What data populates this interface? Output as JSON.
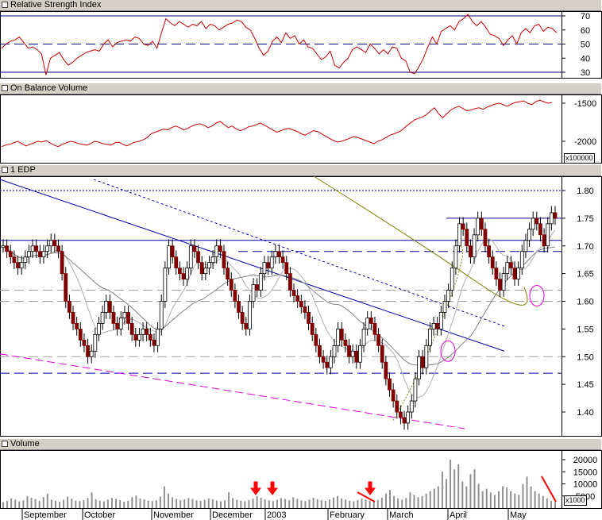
{
  "panels": {
    "rsi": {
      "title": "Relative Strength Index"
    },
    "obv": {
      "title": "On Balance Volume",
      "unit": "x100000"
    },
    "price": {
      "title": "1 EDP"
    },
    "volume": {
      "title": "Volume",
      "unit": "x1000"
    }
  },
  "colors": {
    "line_red": "#cc0000",
    "candle_up": "#ffffff",
    "candle_down": "#800000",
    "trend_blue": "#0000b0",
    "support_blue": "#0000a0",
    "magenta": "#e000e0",
    "olive": "#808000",
    "ma_gray": "#a0a0a0",
    "volume_bar": "#909090",
    "arrow": "#ff0000",
    "panel_header": "#d4d0c8"
  },
  "x_axis": {
    "labels": [
      "September",
      "October",
      "November",
      "December",
      "2003",
      "February",
      "March",
      "April",
      "May"
    ]
  },
  "chart_data": [
    {
      "type": "line",
      "title": "Relative Strength Index",
      "yticks": [
        30,
        40,
        50,
        60,
        70
      ],
      "ylim": [
        27,
        74
      ],
      "reference_lines": [
        30,
        50,
        70
      ],
      "series": [
        {
          "values": [
            47,
            50,
            52,
            53,
            55,
            51,
            47,
            48,
            46,
            43,
            28,
            40,
            42,
            44,
            39,
            35,
            37,
            40,
            42,
            44,
            45,
            46,
            45,
            50,
            53,
            48,
            51,
            52,
            53,
            52,
            55,
            54,
            50,
            49,
            52,
            47,
            58,
            68,
            65,
            63,
            66,
            64,
            62,
            64,
            63,
            66,
            61,
            64,
            63,
            60,
            62,
            64,
            65,
            67,
            66,
            62,
            60,
            54,
            47,
            42,
            45,
            52,
            55,
            51,
            58,
            54,
            56,
            50,
            53,
            48,
            47,
            43,
            39,
            41,
            45,
            35,
            33,
            37,
            40,
            46,
            48,
            46,
            44,
            50,
            47,
            43,
            46,
            43,
            48,
            47,
            40,
            38,
            30,
            29,
            34,
            40,
            48,
            55,
            50,
            59,
            61,
            63,
            60,
            66,
            68,
            71,
            66,
            63,
            66,
            62,
            57,
            56,
            54,
            49,
            53,
            56,
            50,
            58,
            61,
            58,
            63,
            64,
            59,
            62,
            61,
            58
          ]
        }
      ]
    },
    {
      "type": "line",
      "title": "On Balance Volume",
      "yticks": [
        -2000,
        -1500
      ],
      "ylim": [
        -2300,
        -1400
      ],
      "series": [
        {
          "values": [
            -2070,
            -2050,
            -2040,
            -2020,
            -2000,
            -2030,
            -2060,
            -2040,
            -2020,
            -2000,
            -2010,
            -1990,
            -2020,
            -2050,
            -2070,
            -2040,
            -2020,
            -2000,
            -2010,
            -2030,
            -2040,
            -2050,
            -2030,
            -2000,
            -2010,
            -2030,
            -2040,
            -2050,
            -2020,
            -2010,
            -2040,
            -2060,
            -2030,
            -2010,
            -2000,
            -1980,
            -1950,
            -1900,
            -1880,
            -1860,
            -1840,
            -1850,
            -1820,
            -1800,
            -1820,
            -1850,
            -1830,
            -1800,
            -1780,
            -1770,
            -1790,
            -1820,
            -1800,
            -1760,
            -1740,
            -1780,
            -1820,
            -1800,
            -1840,
            -1860,
            -1840,
            -1810,
            -1800,
            -1780,
            -1760,
            -1790,
            -1820,
            -1850,
            -1880,
            -1860,
            -1840,
            -1830,
            -1850,
            -1870,
            -1900,
            -1920,
            -1890,
            -1860,
            -1870,
            -1900,
            -1930,
            -1960,
            -1990,
            -2010,
            -2000,
            -1980,
            -1960,
            -1940,
            -1950,
            -1970,
            -1990,
            -2010,
            -2030,
            -2000,
            -1980,
            -1950,
            -1920,
            -1900,
            -1880,
            -1850,
            -1800,
            -1760,
            -1720,
            -1700,
            -1680,
            -1650,
            -1600,
            -1560,
            -1640,
            -1690,
            -1640,
            -1590,
            -1560,
            -1540,
            -1570,
            -1600,
            -1590,
            -1570,
            -1560,
            -1580,
            -1550,
            -1530,
            -1510,
            -1500,
            -1520,
            -1540,
            -1510,
            -1490,
            -1480,
            -1470,
            -1500,
            -1520,
            -1480,
            -1460,
            -1480,
            -1500,
            -1490
          ]
        }
      ]
    },
    {
      "type": "candlestick",
      "title": "1 EDP",
      "yticks": [
        1.4,
        1.45,
        1.5,
        1.55,
        1.6,
        1.65,
        1.7,
        1.75,
        1.8
      ],
      "ylim": [
        1.36,
        1.82
      ],
      "closes": [
        1.7,
        1.69,
        1.68,
        1.67,
        1.66,
        1.67,
        1.68,
        1.69,
        1.7,
        1.69,
        1.68,
        1.69,
        1.7,
        1.71,
        1.7,
        1.69,
        1.65,
        1.6,
        1.58,
        1.56,
        1.55,
        1.53,
        1.52,
        1.5,
        1.51,
        1.54,
        1.56,
        1.58,
        1.6,
        1.58,
        1.56,
        1.55,
        1.57,
        1.58,
        1.56,
        1.54,
        1.53,
        1.54,
        1.55,
        1.54,
        1.53,
        1.52,
        1.55,
        1.6,
        1.66,
        1.7,
        1.68,
        1.66,
        1.65,
        1.64,
        1.66,
        1.7,
        1.69,
        1.67,
        1.65,
        1.66,
        1.67,
        1.68,
        1.7,
        1.69,
        1.66,
        1.64,
        1.62,
        1.6,
        1.58,
        1.56,
        1.55,
        1.6,
        1.63,
        1.62,
        1.65,
        1.67,
        1.66,
        1.68,
        1.69,
        1.68,
        1.67,
        1.65,
        1.62,
        1.61,
        1.6,
        1.59,
        1.58,
        1.56,
        1.54,
        1.52,
        1.5,
        1.49,
        1.48,
        1.5,
        1.52,
        1.55,
        1.53,
        1.52,
        1.5,
        1.51,
        1.49,
        1.52,
        1.55,
        1.57,
        1.56,
        1.54,
        1.52,
        1.49,
        1.46,
        1.44,
        1.42,
        1.4,
        1.39,
        1.38,
        1.4,
        1.42,
        1.46,
        1.5,
        1.48,
        1.52,
        1.55,
        1.56,
        1.55,
        1.58,
        1.6,
        1.62,
        1.66,
        1.7,
        1.74,
        1.73,
        1.7,
        1.68,
        1.72,
        1.75,
        1.73,
        1.7,
        1.68,
        1.66,
        1.64,
        1.62,
        1.65,
        1.67,
        1.66,
        1.64,
        1.66,
        1.69,
        1.71,
        1.73,
        1.75,
        1.74,
        1.72,
        1.7,
        1.74,
        1.76,
        1.75
      ],
      "horizontal_lines": [
        {
          "y": 1.8,
          "style": "dotted"
        },
        {
          "y": 1.75,
          "style": "solid"
        },
        {
          "y": 1.71,
          "style": "solid"
        },
        {
          "y": 1.69,
          "style": "dashed"
        },
        {
          "y": 1.62,
          "style": "dashed-gray"
        },
        {
          "y": 1.6,
          "style": "dashed-gray"
        },
        {
          "y": 1.5,
          "style": "dashed-gray"
        },
        {
          "y": 1.47,
          "style": "dashed"
        }
      ]
    },
    {
      "type": "bar",
      "title": "Volume",
      "yticks": [
        5000,
        10000,
        15000,
        20000
      ],
      "ylim": [
        0,
        22000
      ],
      "values": [
        2500,
        3000,
        4000,
        3500,
        2800,
        3200,
        5000,
        4200,
        3800,
        3000,
        4500,
        6000,
        3500,
        3000,
        2600,
        3400,
        4800,
        3900,
        3100,
        2900,
        3300,
        4100,
        6500,
        3700,
        3000,
        2800,
        3500,
        4200,
        3800,
        3300,
        2700,
        3000,
        4500,
        5200,
        4000,
        3600,
        3100,
        2900,
        3200,
        4800,
        9000,
        6000,
        4500,
        3800,
        3300,
        3600,
        4100,
        3800,
        3200,
        3000,
        3400,
        4000,
        3700,
        3100,
        2800,
        3200,
        6500,
        4200,
        3500,
        3000,
        2800,
        3300,
        3900,
        5000,
        4300,
        3600,
        3200,
        2900,
        3400,
        4100,
        3800,
        3300,
        4500,
        3800,
        3200,
        2900,
        3500,
        4200,
        3700,
        3300,
        3000,
        3600,
        4400,
        5000,
        4000,
        3500,
        3100,
        2800,
        3300,
        3900,
        3500,
        3100,
        2800,
        3400,
        4300,
        6000,
        7500,
        5000,
        4000,
        3500,
        4200,
        6500,
        5500,
        4500,
        5000,
        6000,
        7000,
        8000,
        9000,
        15000,
        12000,
        20000,
        16000,
        18000,
        11000,
        9000,
        14000,
        16000,
        10000,
        7000,
        8000,
        6500,
        5500,
        7000,
        9000,
        8500,
        7000,
        6000,
        5500,
        10000,
        13000,
        9000,
        7000,
        6000,
        5000,
        4000,
        3000,
        2500
      ]
    }
  ]
}
